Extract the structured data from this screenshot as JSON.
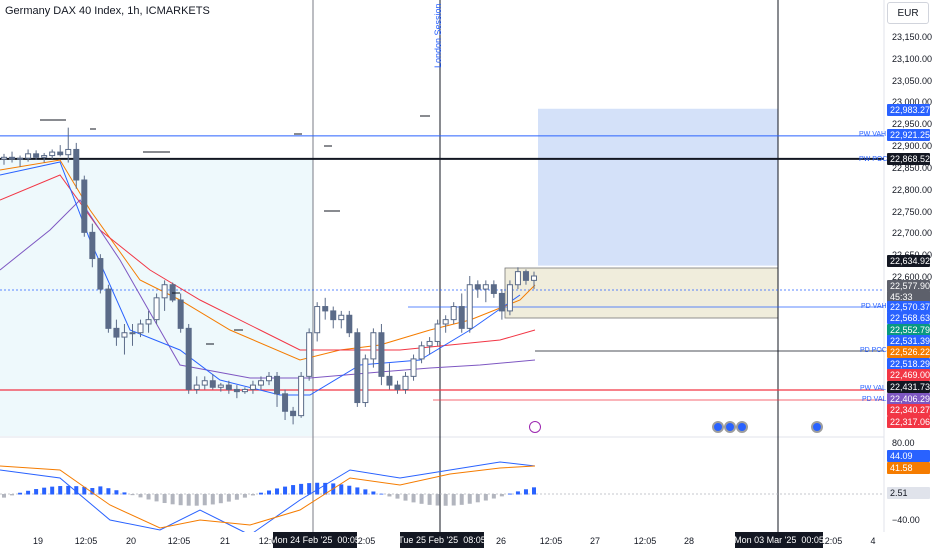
{
  "header": {
    "title": "Germany DAX 40 Index, 1h, ICMARKETS",
    "currency": "EUR"
  },
  "colors": {
    "bg": "#ffffff",
    "accent": "#2962ff",
    "down_red": "#f23645",
    "up_green": "#089981",
    "candle_body": "#5b6b88",
    "highlight_fill": "#eef9fc",
    "target_box": "#c9daf8",
    "stop_box": "#f0eddc",
    "cross_circle": "#e7b800"
  },
  "price_axis": {
    "labels": [
      "23,150.00",
      "23,100.00",
      "23,050.00",
      "23,000.00",
      "22,950.00",
      "22,900.00",
      "22,850.00",
      "22,800.00",
      "22,750.00",
      "22,700.00",
      "22,650.00",
      "22,600.00"
    ],
    "osc_labels": [
      "80.00",
      "−40.00"
    ]
  },
  "badges": [
    {
      "id": "b1",
      "text": "22,983.27",
      "color": "#2962ff"
    },
    {
      "id": "b2",
      "text": "22,921.25",
      "color": "#2962ff"
    },
    {
      "id": "b3",
      "text": "22,868.52",
      "color": "#131722"
    },
    {
      "id": "b4",
      "text": "22,634.92",
      "color": "#131722"
    },
    {
      "id": "b5",
      "text": "22,577.90",
      "color": "#5d606b"
    },
    {
      "id": "b6",
      "text": "45:33",
      "color": "#5d606b"
    },
    {
      "id": "b7",
      "text": "22,570.37",
      "color": "#2962ff"
    },
    {
      "id": "b8",
      "text": "22,568.63",
      "color": "#2962ff"
    },
    {
      "id": "b9",
      "text": "22,552.79",
      "color": "#089981"
    },
    {
      "id": "b10",
      "text": "22,531.39",
      "color": "#2962ff"
    },
    {
      "id": "b11",
      "text": "22,526.22",
      "color": "#f57c00"
    },
    {
      "id": "b12",
      "text": "22,518.29",
      "color": "#2962ff"
    },
    {
      "id": "b13",
      "text": "22,469.00",
      "color": "#f23645"
    },
    {
      "id": "b14",
      "text": "22,431.73",
      "color": "#131722"
    },
    {
      "id": "b15",
      "text": "22,406.29",
      "color": "#7e57c2"
    },
    {
      "id": "b16",
      "text": "22,340.27",
      "color": "#f23645"
    },
    {
      "id": "b17",
      "text": "22,317.06",
      "color": "#f23645"
    },
    {
      "id": "b18",
      "text": "44.09",
      "color": "#2962ff"
    },
    {
      "id": "b19",
      "text": "41.58",
      "color": "#f57c00"
    },
    {
      "id": "b20",
      "text": "2.51",
      "color": "#787b86"
    }
  ],
  "level_tags": [
    {
      "id": "t1",
      "text": "PW VAH",
      "color": "#2962ff"
    },
    {
      "id": "t2",
      "text": "PW POC",
      "color": "#2962ff"
    },
    {
      "id": "t3",
      "text": "PD VAH",
      "color": "#2962ff"
    },
    {
      "id": "t4",
      "text": "PD POC",
      "color": "#2962ff"
    },
    {
      "id": "t5",
      "text": "PW VAL",
      "color": "#2962ff"
    },
    {
      "id": "t6",
      "text": "PD VAL",
      "color": "#2962ff"
    }
  ],
  "session_label": "London Session",
  "time_axis": {
    "labels": [
      "19",
      "12:05",
      "20",
      "12:05",
      "21",
      "12:05",
      "12:05",
      "26",
      "12:05",
      "27",
      "12:05",
      "28",
      "12:05",
      "4"
    ],
    "highlights": [
      "Mon 24 Feb '25",
      "00:05",
      "Tue 25 Feb '25",
      "08:05",
      "Mon 03 Mar '25",
      "00:05"
    ]
  },
  "chart_data": {
    "type": "candlestick",
    "title": "Germany DAX 40 Index, 1h, ICMARKETS",
    "y_range": [
      22230,
      23180
    ],
    "candles": [
      [
        22868,
        22880,
        22855,
        22872
      ],
      [
        22872,
        22885,
        22860,
        22868
      ],
      [
        22868,
        22876,
        22850,
        22870
      ],
      [
        22870,
        22890,
        22862,
        22880
      ],
      [
        22880,
        22888,
        22866,
        22872
      ],
      [
        22872,
        22882,
        22860,
        22876
      ],
      [
        22876,
        22890,
        22868,
        22884
      ],
      [
        22884,
        22900,
        22874,
        22878
      ],
      [
        22878,
        22940,
        22860,
        22890
      ],
      [
        22890,
        22905,
        22800,
        22820
      ],
      [
        22820,
        22830,
        22690,
        22700
      ],
      [
        22700,
        22720,
        22620,
        22640
      ],
      [
        22640,
        22650,
        22560,
        22570
      ],
      [
        22570,
        22580,
        22470,
        22480
      ],
      [
        22480,
        22500,
        22440,
        22460
      ],
      [
        22460,
        22490,
        22420,
        22470
      ],
      [
        22470,
        22490,
        22440,
        22470
      ],
      [
        22470,
        22500,
        22460,
        22490
      ],
      [
        22490,
        22520,
        22470,
        22500
      ],
      [
        22500,
        22560,
        22490,
        22550
      ],
      [
        22550,
        22590,
        22520,
        22580
      ],
      [
        22580,
        22585,
        22540,
        22545
      ],
      [
        22545,
        22560,
        22470,
        22480
      ],
      [
        22480,
        22490,
        22330,
        22340
      ],
      [
        22340,
        22370,
        22330,
        22350
      ],
      [
        22350,
        22370,
        22340,
        22360
      ],
      [
        22360,
        22375,
        22340,
        22345
      ],
      [
        22345,
        22355,
        22335,
        22350
      ],
      [
        22350,
        22360,
        22330,
        22340
      ],
      [
        22340,
        22350,
        22320,
        22335
      ],
      [
        22335,
        22345,
        22330,
        22340
      ],
      [
        22340,
        22360,
        22330,
        22350
      ],
      [
        22350,
        22370,
        22340,
        22360
      ],
      [
        22360,
        22380,
        22350,
        22370
      ],
      [
        22370,
        22380,
        22300,
        22330
      ],
      [
        22330,
        22340,
        22270,
        22290
      ],
      [
        22290,
        22300,
        22260,
        22280
      ],
      [
        22280,
        22380,
        22275,
        22370
      ],
      [
        22370,
        22480,
        22360,
        22470
      ],
      [
        22470,
        22540,
        22450,
        22530
      ],
      [
        22530,
        22550,
        22500,
        22520
      ],
      [
        22520,
        22530,
        22480,
        22500
      ],
      [
        22500,
        22520,
        22480,
        22510
      ],
      [
        22510,
        22520,
        22460,
        22470
      ],
      [
        22470,
        22480,
        22300,
        22310
      ],
      [
        22310,
        22420,
        22300,
        22410
      ],
      [
        22410,
        22480,
        22390,
        22470
      ],
      [
        22470,
        22490,
        22350,
        22370
      ],
      [
        22370,
        22400,
        22340,
        22350
      ],
      [
        22350,
        22360,
        22330,
        22340
      ],
      [
        22340,
        22380,
        22330,
        22370
      ],
      [
        22370,
        22420,
        22360,
        22410
      ],
      [
        22410,
        22450,
        22400,
        22440
      ],
      [
        22440,
        22460,
        22420,
        22450
      ],
      [
        22450,
        22500,
        22440,
        22490
      ],
      [
        22490,
        22510,
        22470,
        22500
      ],
      [
        22500,
        22540,
        22490,
        22530
      ],
      [
        22530,
        22560,
        22470,
        22480
      ],
      [
        22480,
        22600,
        22470,
        22580
      ],
      [
        22580,
        22590,
        22550,
        22570
      ],
      [
        22570,
        22590,
        22540,
        22580
      ],
      [
        22580,
        22590,
        22550,
        22560
      ],
      [
        22560,
        22570,
        22500,
        22520
      ],
      [
        22520,
        22590,
        22510,
        22580
      ],
      [
        22580,
        22620,
        22570,
        22610
      ],
      [
        22610,
        22615,
        22580,
        22590
      ],
      [
        22590,
        22610,
        22570,
        22600
      ]
    ],
    "levels": {
      "PW VAH": 22921.25,
      "PW POC": 22868.52,
      "PD VAH": 22570.37,
      "PD POC": 22526.22,
      "PW VAL": 22431.73,
      "PD VAL": 22406.29
    },
    "position_box": {
      "entry": 22577.9,
      "target": 22983.27,
      "stop": 22518.29
    },
    "oscillator_range": [
      -40,
      80
    ],
    "oscillator_values": {
      "blue": 44.09,
      "orange": 41.58,
      "histogram": 2.51
    }
  }
}
